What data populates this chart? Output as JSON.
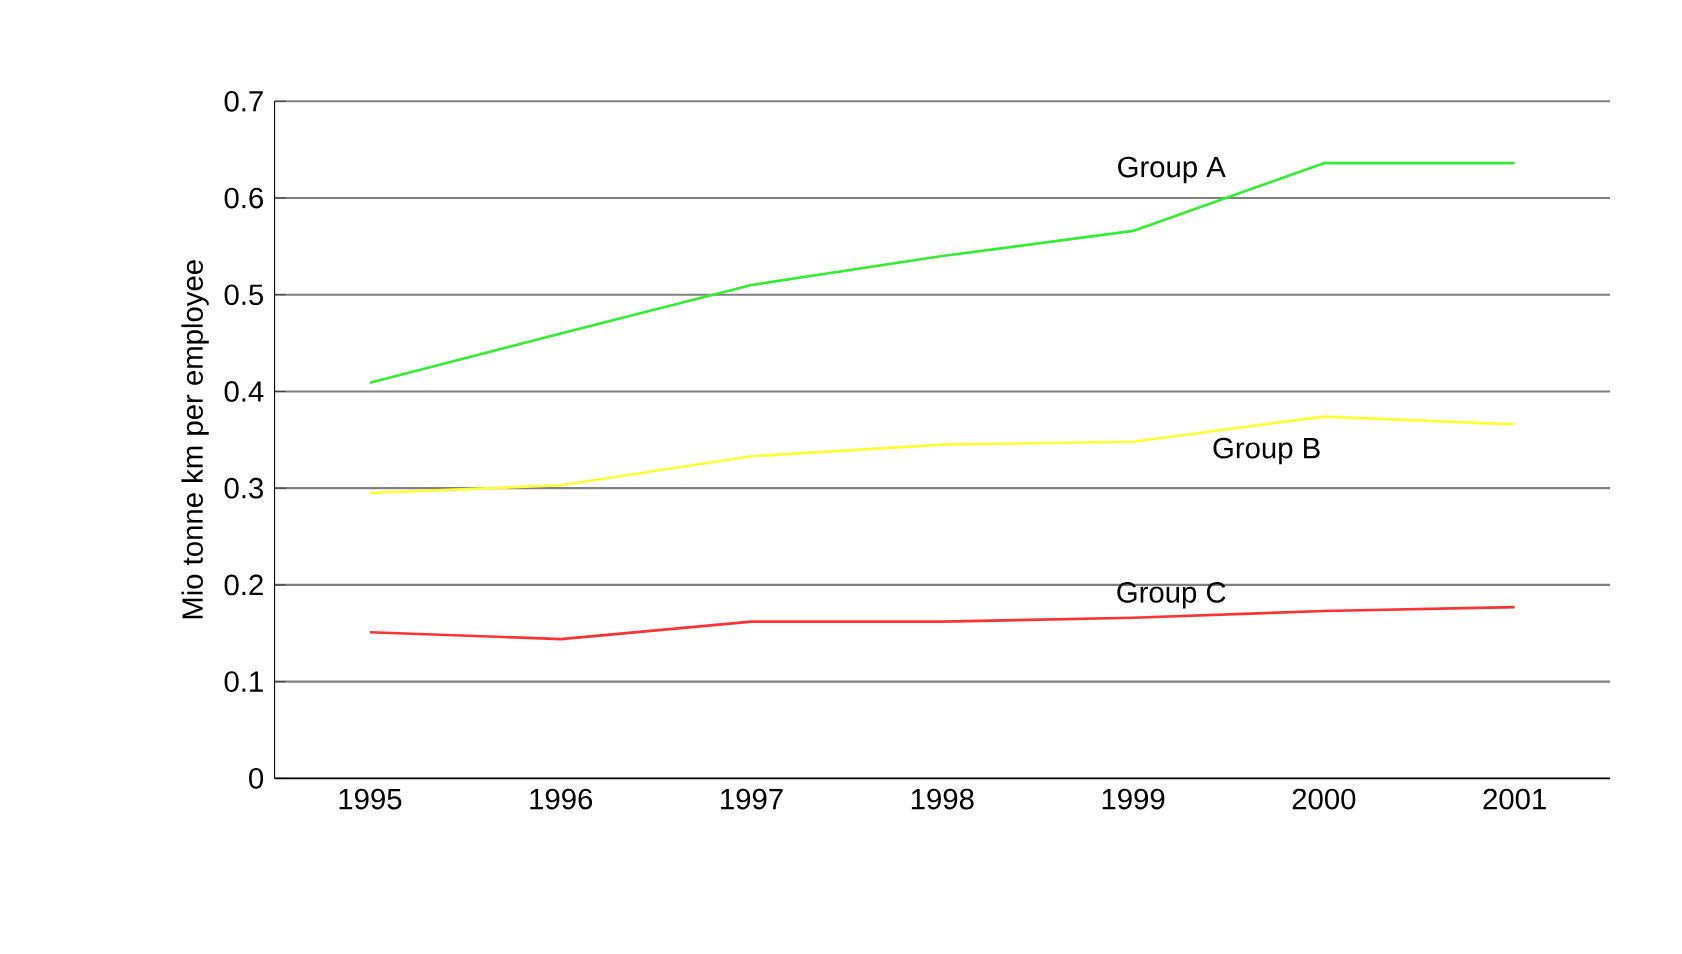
{
  "chart_data": {
    "type": "line",
    "ylabel": "Mio tonne km per employee",
    "categories": [
      "1995",
      "1996",
      "1997",
      "1998",
      "1999",
      "2000",
      "2001"
    ],
    "series": [
      {
        "name": "Group A",
        "color": "#33ee33",
        "values": [
          0.409,
          0.46,
          0.51,
          0.54,
          0.566,
          0.636,
          0.636
        ]
      },
      {
        "name": "Group B",
        "color": "#ffff33",
        "values": [
          0.295,
          0.303,
          0.333,
          0.345,
          0.348,
          0.374,
          0.366
        ]
      },
      {
        "name": "Group C",
        "color": "#ff3333",
        "values": [
          0.151,
          0.144,
          0.162,
          0.162,
          0.166,
          0.173,
          0.177
        ]
      }
    ],
    "ylim": [
      0,
      0.7
    ],
    "yticks": [
      0,
      0.1,
      0.2,
      0.3,
      0.4,
      0.5,
      0.6,
      0.7
    ],
    "grid": "y",
    "legend": false,
    "marker": "none",
    "line_style": "solid"
  }
}
